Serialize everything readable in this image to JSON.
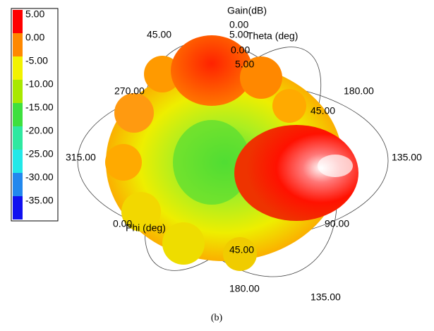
{
  "chart_data": {
    "type": "surface-3d",
    "title": "Gain(dB)",
    "theta_label": "Theta (deg)",
    "phi_label": "Phi (deg)",
    "caption": "(b)",
    "colorbar": {
      "ticks": [
        {
          "value": 5,
          "label": "5.00"
        },
        {
          "value": 0,
          "label": "0.00"
        },
        {
          "value": -5,
          "label": "-5.00"
        },
        {
          "value": -10,
          "label": "-10.00"
        },
        {
          "value": -15,
          "label": "-15.00"
        },
        {
          "value": -20,
          "label": "-20.00"
        },
        {
          "value": -25,
          "label": "-25.00"
        },
        {
          "value": -30,
          "label": "-30.00"
        },
        {
          "value": -35,
          "label": "-35.00"
        }
      ],
      "colors": [
        "#ff0000",
        "#ff8800",
        "#f2f200",
        "#a8e800",
        "#3ee03e",
        "#2ee8a0",
        "#22e8e8",
        "#2288ee",
        "#1010f0"
      ]
    },
    "gain_ticks": [
      {
        "value": 0,
        "label": "0.00"
      },
      {
        "value": 5,
        "label": "5.00"
      }
    ],
    "theta_ticks": [
      {
        "value": 0,
        "label": "0.00"
      },
      {
        "value": 5,
        "label": "5.00"
      }
    ],
    "phi_ticks": [
      {
        "value": 315,
        "label": "315.00"
      },
      {
        "value": 135,
        "label": "135.00"
      },
      {
        "value": 0,
        "label": "0.00"
      },
      {
        "value": 90,
        "label": "90.00"
      },
      {
        "value": 270,
        "label": "270.00"
      },
      {
        "value": 180,
        "label": "180.00"
      }
    ],
    "ring_ticks": [
      {
        "value": 45,
        "label": "45.00"
      },
      {
        "value": 45,
        "label": "45.00"
      },
      {
        "value": 45,
        "label": "45.00"
      },
      {
        "value": 180,
        "label": "180.00"
      },
      {
        "value": 135,
        "label": "135.00"
      }
    ]
  }
}
